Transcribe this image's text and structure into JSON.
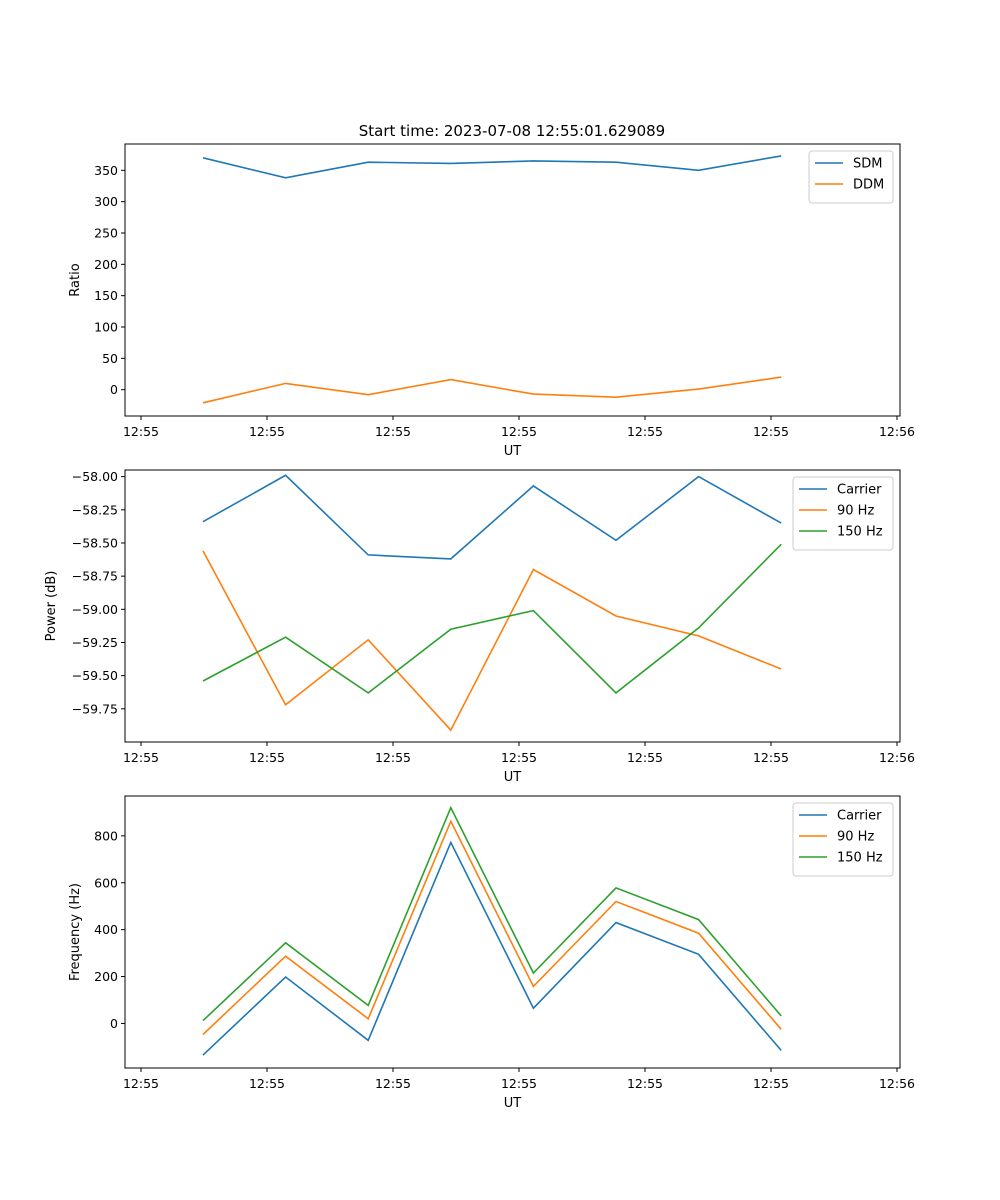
{
  "title": "Start time: 2023-07-08 12:55:01.629089",
  "chart_data": [
    {
      "type": "line",
      "xlabel": "UT",
      "ylabel": "Ratio",
      "x_tick_labels": [
        "12:55",
        "12:55",
        "12:55",
        "12:55",
        "12:55",
        "12:55",
        "12:56"
      ],
      "y_ticks": [
        0,
        50,
        100,
        150,
        200,
        250,
        300,
        350
      ],
      "y_tick_labels": [
        "0",
        "50",
        "100",
        "150",
        "200",
        "250",
        "300",
        "350"
      ],
      "ylim": [
        -42,
        392
      ],
      "legend_position": "top-right",
      "series": [
        {
          "name": "SDM",
          "color": "#1f77b4",
          "values": [
            370,
            338,
            363,
            361,
            365,
            363,
            350,
            373
          ]
        },
        {
          "name": "DDM",
          "color": "#ff7f0e",
          "values": [
            -21,
            10,
            -8,
            16,
            -7,
            -12,
            1,
            20
          ]
        }
      ]
    },
    {
      "type": "line",
      "xlabel": "UT",
      "ylabel": "Power (dB)",
      "x_tick_labels": [
        "12:55",
        "12:55",
        "12:55",
        "12:55",
        "12:55",
        "12:55",
        "12:56"
      ],
      "y_ticks": [
        -59.75,
        -59.5,
        -59.25,
        -59.0,
        -58.75,
        -58.5,
        -58.25,
        -58.0
      ],
      "y_tick_labels": [
        "−59.75",
        "−59.50",
        "−59.25",
        "−59.00",
        "−58.75",
        "−58.50",
        "−58.25",
        "−58.00"
      ],
      "ylim": [
        -60.0,
        -57.95
      ],
      "legend_position": "top-right",
      "series": [
        {
          "name": "Carrier",
          "color": "#1f77b4",
          "values": [
            -58.34,
            -57.99,
            -58.59,
            -58.62,
            -58.07,
            -58.48,
            -58.0,
            -58.35
          ]
        },
        {
          "name": "90 Hz",
          "color": "#ff7f0e",
          "values": [
            -58.56,
            -59.72,
            -59.23,
            -59.91,
            -58.7,
            -59.05,
            -59.2,
            -59.45
          ]
        },
        {
          "name": "150 Hz",
          "color": "#2ca02c",
          "values": [
            -59.54,
            -59.21,
            -59.63,
            -59.15,
            -59.01,
            -59.63,
            -59.14,
            -58.51
          ]
        }
      ]
    },
    {
      "type": "line",
      "xlabel": "UT",
      "ylabel": "Frequency (Hz)",
      "x_tick_labels": [
        "12:55",
        "12:55",
        "12:55",
        "12:55",
        "12:55",
        "12:55",
        "12:56"
      ],
      "y_ticks": [
        0,
        200,
        400,
        600,
        800
      ],
      "y_tick_labels": [
        "0",
        "200",
        "400",
        "600",
        "800"
      ],
      "ylim": [
        -190,
        970
      ],
      "legend_position": "top-right",
      "series": [
        {
          "name": "Carrier",
          "color": "#1f77b4",
          "values": [
            -135,
            198,
            -72,
            772,
            65,
            430,
            295,
            -115
          ]
        },
        {
          "name": "90 Hz",
          "color": "#ff7f0e",
          "values": [
            -47,
            287,
            20,
            862,
            158,
            520,
            385,
            -25
          ]
        },
        {
          "name": "150 Hz",
          "color": "#2ca02c",
          "values": [
            12,
            344,
            77,
            920,
            215,
            578,
            443,
            32
          ]
        }
      ]
    }
  ]
}
